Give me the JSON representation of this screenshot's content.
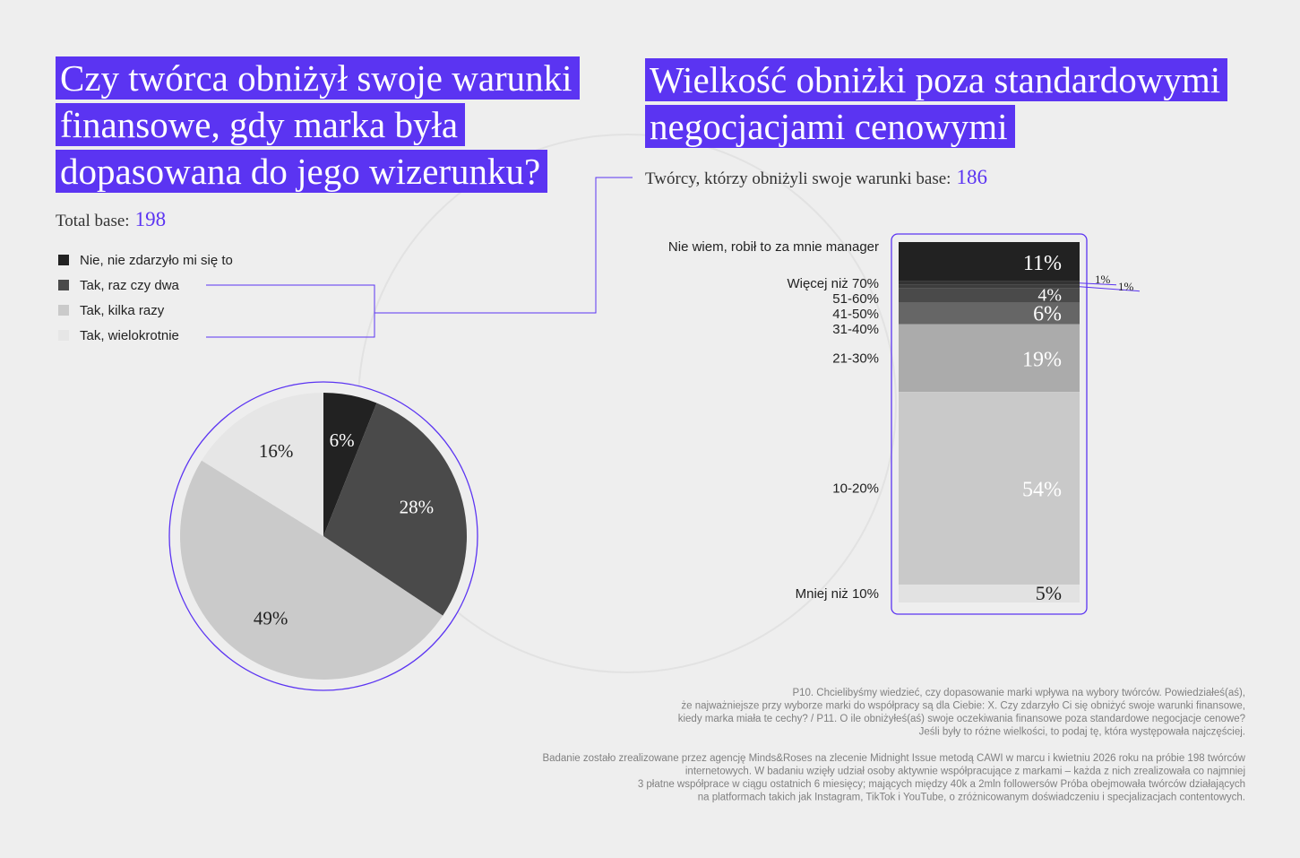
{
  "chart_data": [
    {
      "type": "pie",
      "title": [
        "Czy twórca obniżył swoje warunki",
        "finansowe, gdy marka była",
        "dopasowana do jego wizerunku?"
      ],
      "base_label": "Total base:",
      "base": 198,
      "categories": [
        "Nie, nie zdarzyło mi się to",
        "Tak, raz czy dwa",
        "Tak, kilka razy",
        "Tak, wielokrotnie"
      ],
      "values": [
        6,
        28,
        49,
        16
      ],
      "value_labels": [
        "6%",
        "28%",
        "49%",
        "16%"
      ],
      "colors": [
        "#222222",
        "#4a4a4a",
        "#cacaca",
        "#e6e6e6"
      ]
    },
    {
      "type": "stacked-bar",
      "title": [
        "Wielkość obniżki poza standardowymi",
        "negocjacjami cenowymi"
      ],
      "base_label": "Twórcy, którzy obniżyli swoje warunki base:",
      "base": 186,
      "categories": [
        "Nie wiem, robił to za mnie manager",
        "Więcej niż 70%",
        "51-60%",
        "41-50%",
        "31-40%",
        "21-30%",
        "10-20%",
        "Mniej niż 10%"
      ],
      "values": [
        11,
        1,
        1,
        4,
        6,
        19,
        54,
        5
      ],
      "value_labels": [
        "11%",
        "1%",
        "1%",
        "4%",
        "6%",
        "19%",
        "54%",
        "5%"
      ],
      "colors": [
        "#222222",
        "#333333",
        "#3d3d3d",
        "#4a4a4a",
        "#666666",
        "#ababab",
        "#c9c9c9",
        "#e2e2e2"
      ]
    }
  ],
  "notes": [
    [
      "P10. Chcielibyśmy wiedzieć, czy dopasowanie marki wpływa na wybory twórców. Powiedziałeś(aś),",
      "że najważniejsze przy wyborze marki do współpracy są dla Ciebie: X. Czy zdarzyło Ci się obniżyć swoje warunki finansowe,",
      "kiedy marka miała te cechy? / P11. O ile obniżyłeś(aś) swoje oczekiwania finansowe poza standardowe negocjacje cenowe?",
      "Jeśli były to różne wielkości, to podaj tę, która występowała najczęściej."
    ],
    [
      "Badanie zostało zrealizowane przez agencję Minds&Roses na zlecenie Midnight Issue metodą CAWI w marcu i kwietniu 2026 roku na próbie 198 twórców",
      "internetowych. W badaniu wzięły udział osoby aktywnie współpracujące z markami – każda z nich zrealizowała co najmniej",
      "3 płatne współprace w ciągu ostatnich 6 miesięcy; mających między 40k a 2mln followersów Próba obejmowała twórców działających",
      "na platformach takich jak Instagram, TikTok i YouTube, o zróżnicowanym doświadczeniu i specjalizacjach contentowych."
    ]
  ]
}
